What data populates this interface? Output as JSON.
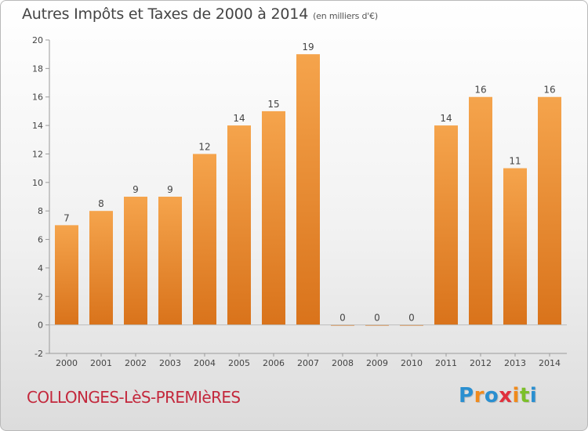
{
  "title": "Autres Impôts et Taxes de 2000 à 2014",
  "unit": "(en milliers d'€)",
  "commune": "COLLONGES-LèS-PREMIèRES",
  "logo": {
    "text": "Proxiti",
    "letters": [
      {
        "char": "P",
        "color": "#2a8fd0"
      },
      {
        "char": "r",
        "color": "#f08a1c"
      },
      {
        "char": "o",
        "color": "#2a8fd0"
      },
      {
        "char": "x",
        "color": "#e0303c"
      },
      {
        "char": "i",
        "color": "#f08a1c"
      },
      {
        "char": "t",
        "color": "#7cbf2a"
      },
      {
        "char": "i",
        "color": "#2a8fd0"
      }
    ]
  },
  "chart_data": {
    "type": "bar",
    "categories": [
      "2000",
      "2001",
      "2002",
      "2003",
      "2004",
      "2005",
      "2006",
      "2007",
      "2008",
      "2009",
      "2010",
      "2011",
      "2012",
      "2013",
      "2014"
    ],
    "values": [
      7,
      8,
      9,
      9,
      12,
      14,
      15,
      19,
      0,
      0,
      0,
      14,
      16,
      11,
      16
    ],
    "ylim": [
      -2,
      20
    ],
    "yticks": [
      -2,
      0,
      2,
      4,
      6,
      8,
      10,
      12,
      14,
      16,
      18,
      20
    ],
    "grid": false,
    "bar_color_top": "#f5a44c",
    "bar_color_bottom": "#d9731b"
  }
}
